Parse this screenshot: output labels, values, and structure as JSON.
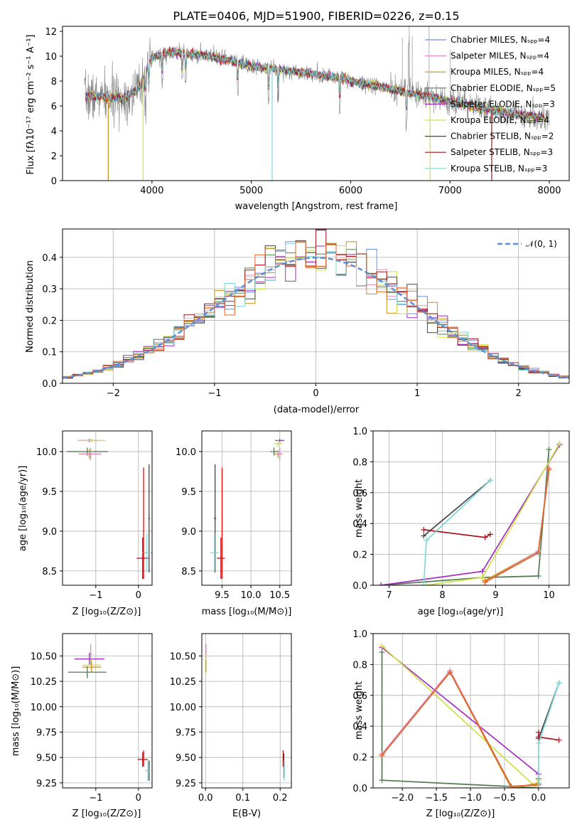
{
  "colors": {
    "Chabrier MILES": "#6f8fd3",
    "Salpeter MILES": "#e08ac0",
    "Kroupa MILES": "#c89012",
    "Chabrier ELODIE": "#507c4e",
    "Salpeter ELODIE": "#a32cbf",
    "Kroupa ELODIE": "#cfe048",
    "Chabrier STELIB": "#444444",
    "Salpeter STELIB": "#a8141e",
    "Kroupa STELIB": "#7fd6d8",
    "data": "#808080",
    "extra_model": "#e2642a",
    "normal": "#5b8fd8",
    "errorbar_red": "#ff0000"
  },
  "chart_data": [
    {
      "id": "spectrum",
      "type": "line",
      "title": "PLATE=0406, MJD=51900, FIBERID=0226, z=0.15",
      "xlabel": "wavelength [Angstrom, rest frame]",
      "ylabel": "Flux [fλ10⁻¹⁷ erg cm⁻² s⁻¹ A⁻¹]",
      "xlim": [
        3100,
        8200
      ],
      "ylim": [
        0,
        12.4
      ],
      "xticks": [
        "4000",
        "5000",
        "6000",
        "7000",
        "8000"
      ],
      "yticks": [
        "0",
        "2",
        "4",
        "6",
        "8",
        "10",
        "12"
      ],
      "legend_position": "upper-right",
      "legend": [
        "Chabrier MILES, Nₛₚₚ=4",
        "Salpeter MILES, Nₛₚₚ=4",
        "Kroupa MILES, Nₛₚₚ=4",
        "Chabrier ELODIE, Nₛₚₚ=5",
        "Salpeter ELODIE, Nₛₚₚ=3",
        "Kroupa ELODIE, Nₛₚₚ=4",
        "Chabrier STELIB, Nₛₚₚ=2",
        "Salpeter STELIB, Nₛₚₚ=3",
        "Kroupa STELIB, Nₛₚₚ=3"
      ],
      "continuum": {
        "x": [
          3300,
          3500,
          3700,
          3850,
          4000,
          4200,
          4500,
          4800,
          5000,
          5300,
          5600,
          5900,
          6200,
          6500,
          6800,
          7100,
          7400,
          7700,
          8000
        ],
        "y": [
          6.8,
          6.7,
          6.6,
          7.2,
          9.9,
          10.3,
          10.1,
          9.6,
          9.2,
          8.9,
          8.6,
          8.2,
          7.7,
          7.2,
          6.7,
          6.2,
          5.7,
          5.3,
          5.0
        ]
      },
      "dips": [
        {
          "x": 3560,
          "model": "Kroupa MILES",
          "y": 0
        },
        {
          "x": 3910,
          "model": "Kroupa ELODIE",
          "y": 0
        },
        {
          "x": 5210,
          "model": "Kroupa STELIB",
          "y": 0
        },
        {
          "x": 6800,
          "model": "Kroupa ELODIE",
          "y": 0
        },
        {
          "x": 7420,
          "model": "Salpeter STELIB",
          "y": 0
        }
      ]
    },
    {
      "id": "residuals",
      "type": "histogram",
      "xlabel": "(data-model)/error",
      "ylabel": "Normed distribution",
      "xlim": [
        -2.5,
        2.5
      ],
      "ylim": [
        0,
        0.49
      ],
      "xticks": [
        "−2",
        "−1",
        "0",
        "1",
        "2"
      ],
      "yticks": [
        "0.0",
        "0.1",
        "0.2",
        "0.3",
        "0.4"
      ],
      "bin_width": 0.1,
      "normal_label": "𝒩(0, 1)",
      "normal": {
        "mean": 0,
        "sd": 1
      },
      "legend_position": "upper-right"
    },
    {
      "id": "age-vs-Z",
      "type": "scatter",
      "xlabel": "Z [log₁₀(Z/Z⊙)]",
      "ylabel": "age  [log₁₀(age/yr)]",
      "xlim": [
        -1.78,
        0.32
      ],
      "ylim": [
        8.32,
        10.26
      ],
      "xticks": [
        "−1",
        "0"
      ],
      "xtick_values": [
        -1,
        0
      ],
      "yticks": [
        "8.5",
        "9.0",
        "9.5",
        "10.0"
      ],
      "ytick_values": [
        8.5,
        9.0,
        9.5,
        10.0
      ],
      "points": [
        {
          "model": "Salpeter ELODIE",
          "x": -1.15,
          "y": 10.14,
          "xerr": 0.25,
          "yerr": 0.02
        },
        {
          "model": "Kroupa ELODIE",
          "x": -1.1,
          "y": 10.14,
          "xerr": 0.33,
          "yerr": 0.02
        },
        {
          "model": "Chabrier ELODIE",
          "x": -1.2,
          "y": 10.0,
          "xerr": 0.48,
          "yerr": 0.05
        },
        {
          "model": "Kroupa MILES",
          "x": -1.15,
          "y": 9.97,
          "xerr": 0.25,
          "yerr": 0.06
        },
        {
          "model": "Salpeter MILES",
          "x": -1.12,
          "y": 9.97,
          "xerr": 0.25,
          "yerr": 0.08
        },
        {
          "model": "Salpeter STELIB",
          "x": 0.1,
          "y": 8.66,
          "xerr": 0.14,
          "yerr": 0.26
        },
        {
          "model": "Chabrier STELIB",
          "x": 0.25,
          "y": 9.16,
          "xerr": 0.02,
          "yerr": 0.68
        },
        {
          "model": "Kroupa STELIB",
          "x": 0.2,
          "y": 8.73,
          "xerr": 0.12,
          "yerr": 0.24
        },
        {
          "model": "errorbar_red",
          "x": 0.12,
          "y": 9.1,
          "xerr": 0.0,
          "yerr": 0.7
        }
      ]
    },
    {
      "id": "age-vs-mass",
      "type": "scatter",
      "xlabel": "mass [log₁₀(M/M⊙)]",
      "ylabel": "",
      "xlim": [
        9.15,
        10.7
      ],
      "ylim": [
        8.32,
        10.26
      ],
      "xticks": [
        "9.5",
        "10.0",
        "10.5"
      ],
      "xtick_values": [
        9.5,
        10.0,
        10.5
      ],
      "yticks": [
        "8.5",
        "9.0",
        "9.5",
        "10.0"
      ],
      "ytick_values": [
        8.5,
        9.0,
        9.5,
        10.0
      ],
      "points": [
        {
          "model": "Salpeter ELODIE",
          "x": 10.5,
          "y": 10.14,
          "xerr": 0.08,
          "yerr": 0.02
        },
        {
          "model": "Kroupa ELODIE",
          "x": 10.47,
          "y": 10.1,
          "xerr": 0.07,
          "yerr": 0.05
        },
        {
          "model": "Chabrier ELODIE",
          "x": 10.4,
          "y": 10.0,
          "xerr": 0.06,
          "yerr": 0.05
        },
        {
          "model": "Kroupa MILES",
          "x": 10.47,
          "y": 9.97,
          "xerr": 0.06,
          "yerr": 0.05
        },
        {
          "model": "Salpeter MILES",
          "x": 10.5,
          "y": 9.97,
          "xerr": 0.05,
          "yerr": 0.08
        },
        {
          "model": "Chabrier STELIB",
          "x": 9.38,
          "y": 9.16,
          "xerr": 0.02,
          "yerr": 0.68
        },
        {
          "model": "Kroupa STELIB",
          "x": 9.37,
          "y": 8.73,
          "xerr": 0.07,
          "yerr": 0.24
        },
        {
          "model": "Salpeter STELIB",
          "x": 9.48,
          "y": 8.66,
          "xerr": 0.07,
          "yerr": 0.26
        },
        {
          "model": "errorbar_red",
          "x": 9.5,
          "y": 9.1,
          "xerr": 0.0,
          "yerr": 0.7
        }
      ]
    },
    {
      "id": "mass-weight-vs-age",
      "type": "line",
      "xlabel": "age  [log₁₀(age/yr)]",
      "ylabel": "mass weight",
      "xlim": [
        6.7,
        10.38
      ],
      "ylim": [
        0,
        1.0
      ],
      "xticks": [
        "7",
        "8",
        "9",
        "10"
      ],
      "xtick_values": [
        7,
        8,
        9,
        10
      ],
      "yticks": [
        "0.0",
        "0.2",
        "0.4",
        "0.6",
        "0.8",
        "1.0"
      ],
      "ytick_values": [
        0,
        0.2,
        0.4,
        0.6,
        0.8,
        1.0
      ],
      "series": [
        {
          "model": "Chabrier ELODIE",
          "x": [
            6.85,
            8.75,
            9.8,
            10.0
          ],
          "y": [
            0.0,
            0.05,
            0.06,
            0.88
          ]
        },
        {
          "model": "Salpeter ELODIE",
          "x": [
            6.85,
            8.75,
            10.2
          ],
          "y": [
            0.0,
            0.09,
            0.91
          ]
        },
        {
          "model": "Kroupa ELODIE",
          "x": [
            7.7,
            8.75,
            10.2
          ],
          "y": [
            0.0,
            0.05,
            0.92
          ]
        },
        {
          "model": "Kroupa MILES",
          "x": [
            8.8,
            9.8,
            10.0
          ],
          "y": [
            0.03,
            0.22,
            0.75
          ]
        },
        {
          "model": "Salpeter MILES",
          "x": [
            8.8,
            9.8,
            10.0
          ],
          "y": [
            0.02,
            0.22,
            0.76
          ]
        },
        {
          "model": "extra_model",
          "x": [
            8.8,
            9.8,
            10.0
          ],
          "y": [
            0.02,
            0.21,
            0.75
          ]
        },
        {
          "model": "Chabrier STELIB",
          "x": [
            7.65,
            8.9
          ],
          "y": [
            0.32,
            0.68
          ]
        },
        {
          "model": "Salpeter STELIB",
          "x": [
            7.65,
            8.8,
            8.9
          ],
          "y": [
            0.36,
            0.31,
            0.33
          ]
        },
        {
          "model": "Kroupa STELIB",
          "x": [
            7.65,
            7.7,
            8.9
          ],
          "y": [
            0.0,
            0.29,
            0.68
          ]
        }
      ]
    },
    {
      "id": "mass-vs-Z",
      "type": "scatter",
      "xlabel": "Z [log₁₀(Z/Z⊙)]",
      "ylabel": "mass [log₁₀(M/M⊙)]",
      "xlim": [
        -1.78,
        0.32
      ],
      "ylim": [
        9.2,
        10.72
      ],
      "xticks": [
        "−1",
        "0"
      ],
      "xtick_values": [
        -1,
        0
      ],
      "yticks": [
        "9.25",
        "9.50",
        "9.75",
        "10.00",
        "10.25",
        "10.50"
      ],
      "ytick_values": [
        9.25,
        9.5,
        9.75,
        10.0,
        10.25,
        10.5
      ],
      "points": [
        {
          "model": "Salpeter MILES",
          "x": -1.12,
          "y": 10.52,
          "xerr": 0.03,
          "yerr": 0.1
        },
        {
          "model": "Salpeter ELODIE",
          "x": -1.15,
          "y": 10.47,
          "xerr": 0.35,
          "yerr": 0.06
        },
        {
          "model": "Kroupa ELODIE",
          "x": -1.1,
          "y": 10.41,
          "xerr": 0.22,
          "yerr": 0.06
        },
        {
          "model": "Kroupa MILES",
          "x": -1.1,
          "y": 10.39,
          "xerr": 0.22,
          "yerr": 0.05
        },
        {
          "model": "Chabrier ELODIE",
          "x": -1.2,
          "y": 10.34,
          "xerr": 0.45,
          "yerr": 0.06
        },
        {
          "model": "Salpeter STELIB",
          "x": 0.1,
          "y": 9.48,
          "xerr": 0.12,
          "yerr": 0.07
        },
        {
          "model": "Chabrier STELIB",
          "x": 0.25,
          "y": 9.37,
          "xerr": 0.02,
          "yerr": 0.1
        },
        {
          "model": "Kroupa STELIB",
          "x": 0.22,
          "y": 9.37,
          "xerr": 0.07,
          "yerr": 0.1
        },
        {
          "model": "errorbar_red",
          "x": 0.12,
          "y": 9.49,
          "xerr": 0.0,
          "yerr": 0.08
        }
      ]
    },
    {
      "id": "mass-vs-ebv",
      "type": "scatter",
      "xlabel": "E(B-V)",
      "ylabel": "",
      "xlim": [
        -0.01,
        0.23
      ],
      "ylim": [
        9.2,
        10.72
      ],
      "xticks": [
        "0.0",
        "0.1",
        "0.2"
      ],
      "xtick_values": [
        0.0,
        0.1,
        0.2
      ],
      "yticks": [
        "9.25",
        "9.50",
        "9.75",
        "10.00",
        "10.25",
        "10.50"
      ],
      "ytick_values": [
        9.25,
        9.5,
        9.75,
        10.0,
        10.25,
        10.5
      ],
      "points": [
        {
          "model": "Salpeter ELODIE",
          "x": 0.001,
          "y": 10.55,
          "xerr": 0.0,
          "yerr": 0.07
        },
        {
          "model": "Salpeter MILES",
          "x": 0.001,
          "y": 10.53,
          "xerr": 0.0,
          "yerr": 0.09
        },
        {
          "model": "Kroupa ELODIE",
          "x": 0.0,
          "y": 10.42,
          "xerr": 0.0,
          "yerr": 0.1
        },
        {
          "model": "Kroupa MILES",
          "x": 0.001,
          "y": 10.4,
          "xerr": 0.0,
          "yerr": 0.06
        },
        {
          "model": "Salpeter STELIB",
          "x": 0.208,
          "y": 9.49,
          "xerr": 0.0,
          "yerr": 0.08
        },
        {
          "model": "Chabrier STELIB",
          "x": 0.21,
          "y": 9.42,
          "xerr": 0.0,
          "yerr": 0.12
        },
        {
          "model": "Kroupa STELIB",
          "x": 0.211,
          "y": 9.37,
          "xerr": 0.0,
          "yerr": 0.1
        }
      ]
    },
    {
      "id": "mass-weight-vs-Z",
      "type": "line",
      "xlabel": "Z [log₁₀(Z/Z⊙)]",
      "ylabel": "mass weight",
      "xlim": [
        -2.43,
        0.45
      ],
      "ylim": [
        0,
        1.0
      ],
      "xticks": [
        "−2.0",
        "−1.5",
        "−1.0",
        "−0.5",
        "0.0"
      ],
      "xtick_values": [
        -2.0,
        -1.5,
        -1.0,
        -0.5,
        0.0
      ],
      "yticks": [
        "0.0",
        "0.2",
        "0.4",
        "0.6",
        "0.8",
        "1.0"
      ],
      "ytick_values": [
        0,
        0.2,
        0.4,
        0.6,
        0.8,
        1.0
      ],
      "series": [
        {
          "model": "Chabrier ELODIE",
          "x": [
            -2.3,
            -2.3,
            0.0,
            0.0
          ],
          "y": [
            0.88,
            0.05,
            0.0,
            0.06
          ]
        },
        {
          "model": "Salpeter ELODIE",
          "x": [
            -2.3,
            0.0,
            0.0
          ],
          "y": [
            0.91,
            0.09,
            0.0
          ]
        },
        {
          "model": "Kroupa ELODIE",
          "x": [
            -2.3,
            -0.05,
            0.0
          ],
          "y": [
            0.92,
            0.01,
            0.05
          ]
        },
        {
          "model": "Kroupa MILES",
          "x": [
            -2.3,
            -1.3,
            -0.4,
            0.0
          ],
          "y": [
            0.22,
            0.75,
            0.0,
            0.03
          ]
        },
        {
          "model": "Salpeter MILES",
          "x": [
            -2.3,
            -1.3,
            -0.4,
            0.0
          ],
          "y": [
            0.22,
            0.76,
            0.01,
            0.02
          ]
        },
        {
          "model": "extra_model",
          "x": [
            -2.3,
            -1.3,
            -0.4,
            0.0
          ],
          "y": [
            0.21,
            0.75,
            0.01,
            0.02
          ]
        },
        {
          "model": "Chabrier STELIB",
          "x": [
            0.0,
            0.3
          ],
          "y": [
            0.32,
            0.68
          ]
        },
        {
          "model": "Salpeter STELIB",
          "x": [
            0.0,
            0.0,
            0.3
          ],
          "y": [
            0.36,
            0.33,
            0.31
          ]
        },
        {
          "model": "Kroupa STELIB",
          "x": [
            0.0,
            0.0,
            0.3
          ],
          "y": [
            0.0,
            0.29,
            0.68
          ]
        }
      ]
    }
  ]
}
